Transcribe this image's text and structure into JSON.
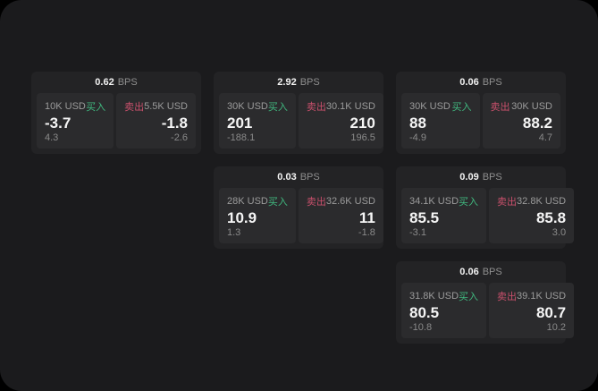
{
  "theme": {
    "page_background": "#000000",
    "surface_color": "#1b1b1d",
    "card_color": "#232325",
    "panel_color": "#2b2b2d",
    "accent_green": "#40b87f",
    "accent_red": "#c9506c",
    "primary_text": "#f5f5f5",
    "muted_text": "#8f8f8f"
  },
  "labels": {
    "bps_unit": "BPS",
    "buy": "买入",
    "sell": "卖出"
  },
  "cards": [
    {
      "bps": "0.62",
      "buy": {
        "size": "10K USD",
        "price": "-3.7",
        "sub": "4.3"
      },
      "sell": {
        "size": "5.5K USD",
        "price": "-1.8",
        "sub": "-2.6"
      }
    },
    {
      "bps": "2.92",
      "buy": {
        "size": "30K USD",
        "price": "201",
        "sub": "-188.1"
      },
      "sell": {
        "size": "30.1K USD",
        "price": "210",
        "sub": "196.5"
      }
    },
    {
      "bps": "0.06",
      "buy": {
        "size": "30K USD",
        "price": "88",
        "sub": "-4.9"
      },
      "sell": {
        "size": "30K USD",
        "price": "88.2",
        "sub": "4.7"
      }
    },
    {
      "bps": "0.03",
      "buy": {
        "size": "28K USD",
        "price": "10.9",
        "sub": "1.3"
      },
      "sell": {
        "size": "32.6K USD",
        "price": "11",
        "sub": "-1.8"
      }
    },
    {
      "bps": "0.09",
      "buy": {
        "size": "34.1K USD",
        "price": "85.5",
        "sub": "-3.1"
      },
      "sell": {
        "size": "32.8K USD",
        "price": "85.8",
        "sub": "3.0"
      }
    },
    {
      "bps": "0.06",
      "buy": {
        "size": "31.8K USD",
        "price": "80.5",
        "sub": "-10.8"
      },
      "sell": {
        "size": "39.1K USD",
        "price": "80.7",
        "sub": "10.2"
      }
    }
  ]
}
